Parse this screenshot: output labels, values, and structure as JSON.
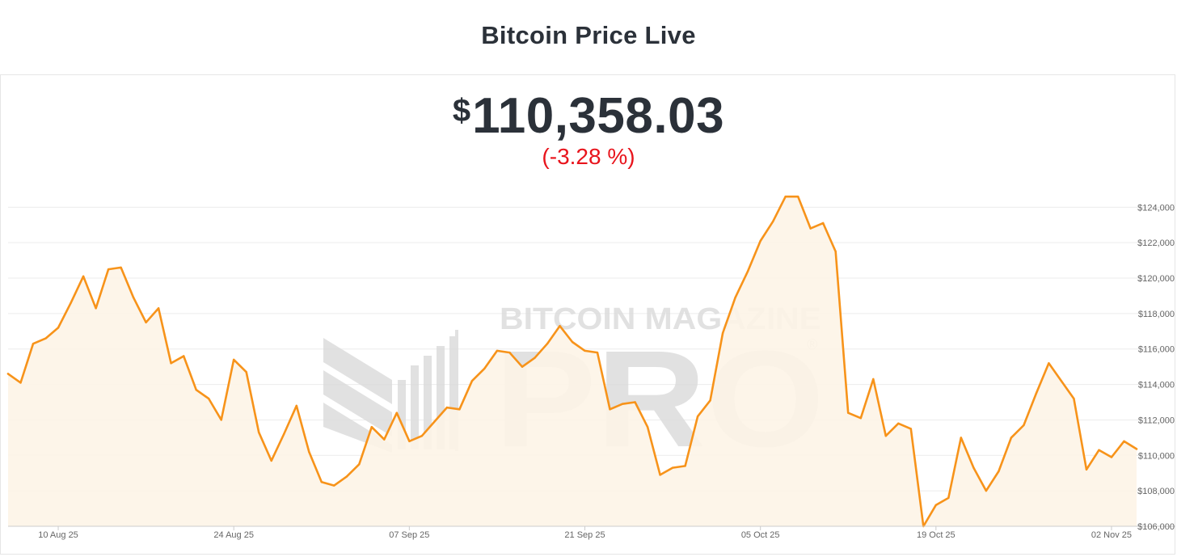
{
  "header": {
    "title": "Bitcoin Price Live"
  },
  "price": {
    "currency": "$",
    "value": "110,358.03",
    "change": "(-3.28 %)"
  },
  "watermark": {
    "line1": "BITCOIN MAGAZINE",
    "line2": "PRO",
    "mark": "®"
  },
  "colors": {
    "line": "#f7931a",
    "area": "#fdf4e7",
    "change": "#e8141c",
    "text": "#2b3139"
  },
  "chart_data": {
    "type": "area",
    "title": "",
    "xlabel": "",
    "ylabel": "",
    "x_start": "2025-08-06",
    "x_end": "2025-11-04",
    "ylim": [
      106000,
      125200
    ],
    "grid": true,
    "legend": "none",
    "x_ticks": [
      {
        "label": "10 Aug 25",
        "date": "2025-08-10"
      },
      {
        "label": "24 Aug 25",
        "date": "2025-08-24"
      },
      {
        "label": "07 Sep 25",
        "date": "2025-09-07"
      },
      {
        "label": "21 Sep 25",
        "date": "2025-09-21"
      },
      {
        "label": "05 Oct 25",
        "date": "2025-10-05"
      },
      {
        "label": "19 Oct 25",
        "date": "2025-10-19"
      },
      {
        "label": "02 Nov 25",
        "date": "2025-11-02"
      }
    ],
    "y_ticks": [
      {
        "label": "$106,000",
        "value": 106000
      },
      {
        "label": "$108,000",
        "value": 108000
      },
      {
        "label": "$110,000",
        "value": 110000
      },
      {
        "label": "$112,000",
        "value": 112000
      },
      {
        "label": "$114,000",
        "value": 114000
      },
      {
        "label": "$116,000",
        "value": 116000
      },
      {
        "label": "$118,000",
        "value": 118000
      },
      {
        "label": "$120,000",
        "value": 120000
      },
      {
        "label": "$122,000",
        "value": 122000
      },
      {
        "label": "$124,000",
        "value": 124000
      }
    ],
    "series": [
      {
        "x": [
          "2025-08-06",
          "2025-08-07",
          "2025-08-08",
          "2025-08-09",
          "2025-08-10",
          "2025-08-11",
          "2025-08-12",
          "2025-08-13",
          "2025-08-14",
          "2025-08-15",
          "2025-08-16",
          "2025-08-17",
          "2025-08-18",
          "2025-08-19",
          "2025-08-20",
          "2025-08-21",
          "2025-08-22",
          "2025-08-23",
          "2025-08-24",
          "2025-08-25",
          "2025-08-26",
          "2025-08-27",
          "2025-08-28",
          "2025-08-29",
          "2025-08-30",
          "2025-08-31",
          "2025-09-01",
          "2025-09-02",
          "2025-09-03",
          "2025-09-04",
          "2025-09-05",
          "2025-09-06",
          "2025-09-07",
          "2025-09-08",
          "2025-09-09",
          "2025-09-10",
          "2025-09-11",
          "2025-09-12",
          "2025-09-13",
          "2025-09-14",
          "2025-09-15",
          "2025-09-16",
          "2025-09-17",
          "2025-09-18",
          "2025-09-19",
          "2025-09-20",
          "2025-09-21",
          "2025-09-22",
          "2025-09-23",
          "2025-09-24",
          "2025-09-25",
          "2025-09-26",
          "2025-09-27",
          "2025-09-28",
          "2025-09-29",
          "2025-09-30",
          "2025-10-01",
          "2025-10-02",
          "2025-10-03",
          "2025-10-04",
          "2025-10-05",
          "2025-10-06",
          "2025-10-07",
          "2025-10-08",
          "2025-10-09",
          "2025-10-10",
          "2025-10-11",
          "2025-10-12",
          "2025-10-13",
          "2025-10-14",
          "2025-10-15",
          "2025-10-16",
          "2025-10-17",
          "2025-10-18",
          "2025-10-19",
          "2025-10-20",
          "2025-10-21",
          "2025-10-22",
          "2025-10-23",
          "2025-10-24",
          "2025-10-25",
          "2025-10-26",
          "2025-10-27",
          "2025-10-28",
          "2025-10-29",
          "2025-10-30",
          "2025-10-31",
          "2025-11-01",
          "2025-11-02",
          "2025-11-03",
          "2025-11-04"
        ],
        "values": [
          114600,
          114100,
          116300,
          116600,
          117200,
          118600,
          120100,
          118300,
          120500,
          120600,
          118900,
          117500,
          118300,
          115200,
          115600,
          113700,
          113200,
          112000,
          115400,
          114700,
          111300,
          109700,
          111200,
          112800,
          110200,
          108500,
          108300,
          108800,
          109500,
          111600,
          110900,
          112400,
          110800,
          111100,
          111900,
          112700,
          112600,
          114200,
          114900,
          115900,
          115800,
          115000,
          115500,
          116300,
          117300,
          116400,
          115900,
          115800,
          112600,
          112900,
          113000,
          111600,
          108900,
          109300,
          109400,
          112200,
          113100,
          116900,
          118900,
          120400,
          122100,
          123200,
          124600,
          124600,
          122800,
          123100,
          121500,
          112400,
          112100,
          114300,
          111100,
          111800,
          111500,
          106000,
          107200,
          107600,
          111000,
          109300,
          108000,
          109100,
          111000,
          111700,
          113500,
          115200,
          114200,
          113200,
          109200,
          110300,
          109900,
          110800,
          110358
        ]
      }
    ]
  }
}
